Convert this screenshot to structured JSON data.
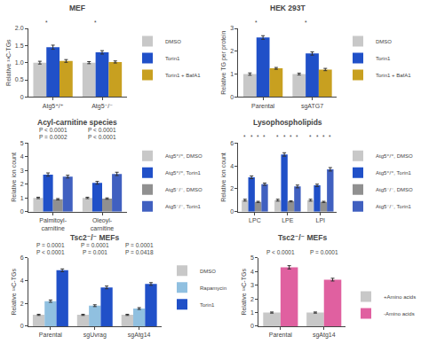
{
  "chart_data": [
    {
      "type": "bar",
      "title": "MEF",
      "ylabel": "Relative ¹³C-TGs",
      "categories": [
        "Atg5⁺/⁺",
        "Atg5⁻/⁻"
      ],
      "series": [
        {
          "name": "DMSO",
          "color": "#c8c8c8",
          "values": [
            1.0,
            1.0
          ],
          "errors": [
            0.04,
            0.03
          ]
        },
        {
          "name": "Torin1",
          "color": "#2050c8",
          "values": [
            1.45,
            1.3
          ],
          "errors": [
            0.06,
            0.05
          ]
        },
        {
          "name": "Torin1 + BafA1",
          "color": "#c8a020",
          "values": [
            1.05,
            1.02
          ],
          "errors": [
            0.04,
            0.03
          ]
        }
      ],
      "ylim": [
        0,
        2.0
      ],
      "yticks": [
        0,
        0.5,
        {
          "value": 1.0,
          "label": "1.0"
        },
        1.5,
        {
          "value": 2.0,
          "label": "2.0"
        }
      ],
      "grid": false,
      "legend": "upper right",
      "annotations": [
        {
          "text": "*",
          "category": "Atg5⁺/⁺",
          "series": [
            "DMSO",
            "Torin1"
          ]
        },
        {
          "text": "*",
          "category": "Atg5⁻/⁻",
          "series": [
            "DMSO",
            "Torin1"
          ]
        }
      ]
    },
    {
      "type": "bar",
      "title": "HEK 293T",
      "ylabel": "Relative TG per protein",
      "categories": [
        "Parental",
        "sgATG7"
      ],
      "series": [
        {
          "name": "DMSO",
          "color": "#c8c8c8",
          "values": [
            1.0,
            1.0
          ],
          "errors": [
            0.05,
            0.04
          ]
        },
        {
          "name": "Torin1",
          "color": "#2050c8",
          "values": [
            2.6,
            1.9
          ],
          "errors": [
            0.08,
            0.07
          ]
        },
        {
          "name": "Torin1 + BafA1",
          "color": "#c8a020",
          "values": [
            1.25,
            1.2
          ],
          "errors": [
            0.04,
            0.05
          ]
        }
      ],
      "ylim": [
        0,
        3.0
      ],
      "yticks": [
        0,
        1,
        2,
        3
      ],
      "grid": false,
      "legend": "upper right",
      "annotations": [
        {
          "text": "*",
          "category": "Parental",
          "series": [
            "DMSO",
            "Torin1"
          ]
        },
        {
          "text": "*",
          "category": "sgATG7",
          "series": [
            "DMSO",
            "Torin1"
          ]
        }
      ]
    },
    {
      "type": "bar",
      "title": "Acyl-carnitine species",
      "ylabel": "Relative ion count",
      "categories": [
        "Palmitoyl-\ncarnitine",
        "Oleoyl-\ncarnitine"
      ],
      "series": [
        {
          "name": "Atg5⁺/⁺, DMSO",
          "color": "#c8c8c8",
          "values": [
            1.0,
            1.0
          ],
          "errors": [
            0.05,
            0.05
          ]
        },
        {
          "name": "Atg5⁺/⁺, Torin1",
          "color": "#2050c8",
          "values": [
            2.7,
            2.1
          ],
          "errors": [
            0.12,
            0.1
          ]
        },
        {
          "name": "Atg5⁻/⁻, DMSO",
          "color": "#909090",
          "values": [
            0.9,
            0.95
          ],
          "errors": [
            0.05,
            0.05
          ]
        },
        {
          "name": "Atg5⁻/⁻, Torin1",
          "color": "#4060c0",
          "values": [
            2.55,
            2.75
          ],
          "errors": [
            0.1,
            0.12
          ]
        }
      ],
      "ylim": [
        0,
        5
      ],
      "yticks": [
        0,
        1,
        2,
        3,
        4,
        5
      ],
      "grid": false,
      "legend": "upper right",
      "annotations": [
        {
          "text": "P = 0.0002",
          "category": "Palmitoyl-\ncarnitine"
        },
        {
          "text": "P < 0.0001",
          "category": "Palmitoyl-\ncarnitine"
        },
        {
          "text": "P < 0.0001",
          "category": "Oleoyl-\ncarnitine"
        },
        {
          "text": "P < 0.0001",
          "category": "Oleoyl-\ncarnitine"
        }
      ]
    },
    {
      "type": "bar",
      "title": "Lysophospholipids",
      "ylabel": "Relative ion count",
      "categories": [
        "LPC",
        "LPE",
        "LPI"
      ],
      "series": [
        {
          "name": "Atg5⁺/⁺, DMSO",
          "color": "#c8c8c8",
          "values": [
            1.0,
            1.0,
            1.0
          ],
          "errors": [
            0.08,
            0.08,
            0.08
          ]
        },
        {
          "name": "Atg5⁺/⁺, Torin1",
          "color": "#2050c8",
          "values": [
            3.0,
            5.0,
            2.3
          ],
          "errors": [
            0.12,
            0.15,
            0.1
          ]
        },
        {
          "name": "Atg5⁻/⁻, DMSO",
          "color": "#909090",
          "values": [
            0.85,
            0.9,
            0.85
          ],
          "errors": [
            0.05,
            0.05,
            0.05
          ]
        },
        {
          "name": "Atg5⁻/⁻, Torin1",
          "color": "#4060c0",
          "values": [
            2.4,
            2.2,
            3.7
          ],
          "errors": [
            0.1,
            0.12,
            0.15
          ]
        }
      ],
      "ylim": [
        0,
        6
      ],
      "yticks": [
        0,
        2,
        4,
        6
      ],
      "grid": false,
      "legend": "upper right",
      "annotations": [
        {
          "text": "*",
          "category": "LPC",
          "series": [
            "Atg5⁺/⁺, DMSO"
          ]
        },
        {
          "text": "*",
          "category": "LPC",
          "series": [
            "Atg5⁺/⁺, Torin1"
          ]
        },
        {
          "text": "*",
          "category": "LPC",
          "series": [
            "Atg5⁻/⁻, DMSO"
          ]
        },
        {
          "text": "*",
          "category": "LPC",
          "series": [
            "Atg5⁻/⁻, Torin1"
          ]
        },
        {
          "text": "*",
          "category": "LPE",
          "series": [
            "Atg5⁺/⁺, DMSO"
          ]
        },
        {
          "text": "*",
          "category": "LPE",
          "series": [
            "Atg5⁺/⁺, Torin1"
          ]
        },
        {
          "text": "*",
          "category": "LPE",
          "series": [
            "Atg5⁻/⁻, DMSO"
          ]
        },
        {
          "text": "*",
          "category": "LPE",
          "series": [
            "Atg5⁻/⁻, Torin1"
          ]
        },
        {
          "text": "*",
          "category": "LPI",
          "series": [
            "Atg5⁺/⁺, DMSO"
          ]
        },
        {
          "text": "*",
          "category": "LPI",
          "series": [
            "Atg5⁺/⁺, Torin1"
          ]
        },
        {
          "text": "*",
          "category": "LPI",
          "series": [
            "Atg5⁻/⁻, DMSO"
          ]
        },
        {
          "text": "*",
          "category": "LPI",
          "series": [
            "Atg5⁻/⁻, Torin1"
          ]
        }
      ]
    },
    {
      "type": "bar",
      "title": "Tsc2⁻/⁻ MEFs",
      "ylabel": "Relative ¹³C-TGs",
      "categories": [
        "Parental",
        "sgUvrag",
        "sgAtg14"
      ],
      "series": [
        {
          "name": "DMSO",
          "color": "#c8c8c8",
          "values": [
            1.0,
            1.0,
            1.0
          ],
          "errors": [
            0.05,
            0.05,
            0.05
          ]
        },
        {
          "name": "Rapamycin",
          "color": "#90c0e0",
          "values": [
            2.2,
            1.8,
            1.55
          ],
          "errors": [
            0.1,
            0.08,
            0.08
          ]
        },
        {
          "name": "Torin1",
          "color": "#2050c8",
          "values": [
            4.9,
            3.4,
            3.7
          ],
          "errors": [
            0.12,
            0.12,
            0.12
          ]
        }
      ],
      "ylim": [
        0,
        6
      ],
      "yticks": [
        0,
        2,
        4,
        6
      ],
      "grid": false,
      "legend": "upper right",
      "annotations": [
        {
          "text": "P < 0.0001",
          "category": "Parental"
        },
        {
          "text": "P = 0.0001",
          "category": "Parental"
        },
        {
          "text": "P = 0.001",
          "category": "sgUvrag"
        },
        {
          "text": "P = 0.0001",
          "category": "sgUvrag"
        },
        {
          "text": "P = 0.0418",
          "category": "sgAtg14"
        },
        {
          "text": "P = 0.0001",
          "category": "sgAtg14"
        }
      ]
    },
    {
      "type": "bar",
      "title": "Tsc2⁻/⁻ MEFs",
      "ylabel": "Relative ¹³C-TGs",
      "categories": [
        "Parental",
        "sgAtg14"
      ],
      "series": [
        {
          "name": "+Amino acids",
          "color": "#c8c8c8",
          "values": [
            1.0,
            1.0
          ],
          "errors": [
            0.04,
            0.04
          ]
        },
        {
          "name": "-Amino acids",
          "color": "#e060a0",
          "values": [
            4.3,
            3.4
          ],
          "errors": [
            0.12,
            0.1
          ]
        }
      ],
      "ylim": [
        0,
        5
      ],
      "yticks": [
        0,
        1,
        2,
        3,
        4,
        5
      ],
      "grid": false,
      "legend": "lower right",
      "annotations": [
        {
          "text": "P < 0.0001",
          "category": "Parental"
        },
        {
          "text": "P = 0.0001",
          "category": "sgAtg14"
        }
      ]
    }
  ]
}
